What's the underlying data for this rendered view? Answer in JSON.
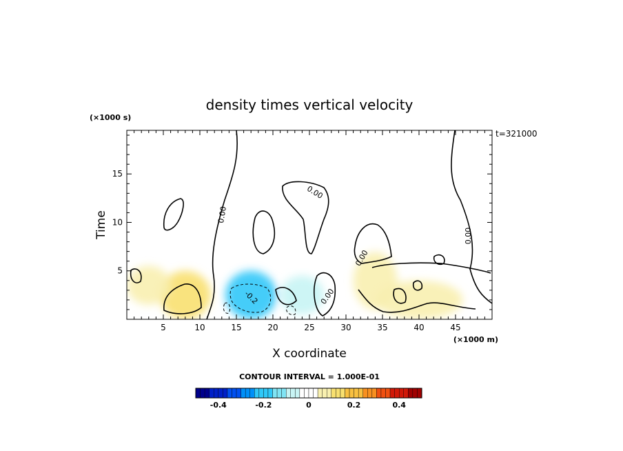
{
  "chart_data": {
    "type": "heatmap",
    "title": "density times vertical velocity",
    "xlabel": "X coordinate",
    "ylabel": "Time",
    "x_unit": "(×1000 m)",
    "y_unit": "(×1000 s)",
    "time_stamp": "t=321000",
    "xlim": [
      0,
      50
    ],
    "ylim": [
      0,
      19.5
    ],
    "x_ticks": [
      5,
      10,
      15,
      20,
      25,
      30,
      35,
      40,
      45
    ],
    "y_ticks": [
      5,
      10,
      15
    ],
    "grid": false,
    "contour_interval_label": "CONTOUR INTERVAL = 1.000E-01",
    "contour_interval": 0.1,
    "contour_labels": [
      "0.00",
      "0.00",
      "0.00",
      "0.00",
      "0.00",
      "-0.2"
    ],
    "field_regions": [
      {
        "x": 8,
        "y": 2.5,
        "rx": 3.5,
        "ry": 2.5,
        "value": 0.14
      },
      {
        "x": 3,
        "y": 3.5,
        "rx": 3,
        "ry": 2,
        "value": 0.05
      },
      {
        "x": 17,
        "y": 2.5,
        "rx": 3.5,
        "ry": 2.5,
        "value": -0.18
      },
      {
        "x": 24,
        "y": 2.5,
        "rx": 3,
        "ry": 2,
        "value": -0.06
      },
      {
        "x": 34,
        "y": 4,
        "rx": 3,
        "ry": 3,
        "value": 0.05
      },
      {
        "x": 40,
        "y": 2,
        "rx": 6,
        "ry": 2,
        "value": 0.04
      },
      {
        "x": 30,
        "y": 13,
        "rx": 22,
        "ry": 7,
        "value": -0.03
      }
    ],
    "colorbar": {
      "min": -0.5,
      "max": 0.5,
      "tick_values": [
        -0.4,
        -0.2,
        0,
        0.2,
        0.4
      ],
      "tick_labels": [
        "-0.4",
        "-0.2",
        "0",
        "0.2",
        "0.4"
      ],
      "colors": [
        "#00008c",
        "#0020c8",
        "#0050f0",
        "#0090f8",
        "#30c8f8",
        "#80e4f4",
        "#c8f4f4",
        "#ffffff",
        "#f8f0b0",
        "#f8e070",
        "#f8c040",
        "#f89020",
        "#f05010",
        "#d01808",
        "#a00000"
      ]
    }
  }
}
